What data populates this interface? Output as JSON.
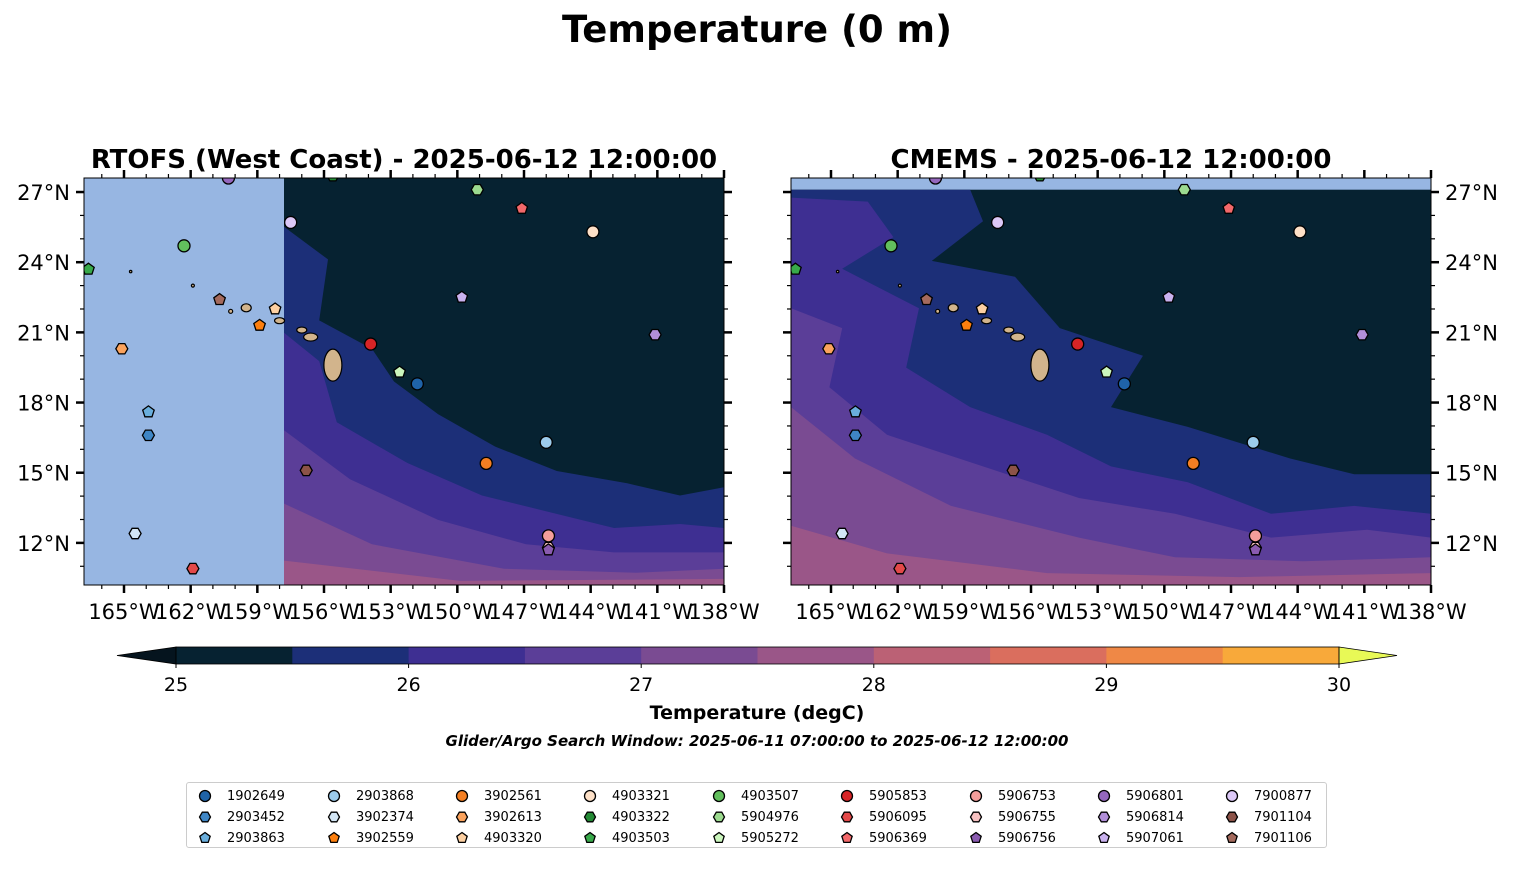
{
  "figure": {
    "suptitle": "Temperature (0 m)",
    "footnote": "Glider/Argo Search Window: 2025-06-11 07:00:00 to 2025-06-12 12:00:00"
  },
  "chart_data": [
    {
      "type": "heatmap",
      "title": "RTOFS (West Coast) - 2025-06-12 12:00:00",
      "x_tick_labels": [
        "165°W",
        "162°W",
        "159°W",
        "156°W",
        "153°W",
        "150°W",
        "147°W",
        "144°W",
        "141°W",
        "138°W"
      ],
      "x_ticks": [
        -165,
        -162,
        -159,
        -156,
        -153,
        -150,
        -147,
        -144,
        -141,
        -138
      ],
      "y_tick_labels": [
        "12°N",
        "15°N",
        "18°N",
        "21°N",
        "24°N",
        "27°N"
      ],
      "y_ticks": [
        12,
        15,
        18,
        21,
        24,
        27
      ],
      "xlim": [
        -166.8,
        -138
      ],
      "ylim": [
        10.2,
        27.6
      ],
      "y_ticks_side": "left",
      "model_coverage_west_lon": -157.8
    },
    {
      "type": "heatmap",
      "title": "CMEMS - 2025-06-12 12:00:00",
      "x_tick_labels": [
        "165°W",
        "162°W",
        "159°W",
        "156°W",
        "153°W",
        "150°W",
        "147°W",
        "144°W",
        "141°W",
        "138°W"
      ],
      "x_ticks": [
        -165,
        -162,
        -159,
        -156,
        -153,
        -150,
        -147,
        -144,
        -141,
        -138
      ],
      "y_tick_labels": [
        "12°N",
        "15°N",
        "18°N",
        "21°N",
        "24°N",
        "27°N"
      ],
      "y_ticks": [
        12,
        15,
        18,
        21,
        24,
        27
      ],
      "xlim": [
        -166.8,
        -138
      ],
      "ylim": [
        10.2,
        27.6
      ],
      "y_ticks_side": "right",
      "model_coverage_north_lat": 27.1
    }
  ],
  "colorbar": {
    "label": "Temperature (degC)",
    "range": [
      25,
      30
    ],
    "tick_values": [
      25,
      26,
      27,
      28,
      29,
      30
    ],
    "tick_labels": [
      "25",
      "26",
      "27",
      "28",
      "29",
      "30"
    ],
    "extend": "both",
    "under_color": "#05141e",
    "over_color": "#e8f956",
    "colors": [
      "#062231",
      "#1c2f78",
      "#3e2f92",
      "#5b3e98",
      "#7a4b92",
      "#9a5688",
      "#bb6175",
      "#da6e5e",
      "#ef8846",
      "#f8a93a",
      "#fdcc3b"
    ]
  },
  "floats": [
    {
      "id": "1902649",
      "marker": "circle",
      "color": "#1f63a8",
      "lon": -151.8,
      "lat": 18.8
    },
    {
      "id": "2903452",
      "marker": "hexagon",
      "color": "#3f86c5",
      "lon": -163.9,
      "lat": 16.6
    },
    {
      "id": "2903863",
      "marker": "pentagon",
      "color": "#6aaedc",
      "lon": -163.9,
      "lat": 17.6
    },
    {
      "id": "2903868",
      "marker": "circle",
      "color": "#9ccbeb",
      "lon": -146.0,
      "lat": 16.3
    },
    {
      "id": "3902374",
      "marker": "hexagon",
      "color": "#d3e6f5",
      "lon": -164.5,
      "lat": 12.4
    },
    {
      "id": "3902559",
      "marker": "pentagon",
      "color": "#fd7f0e",
      "lon": -158.9,
      "lat": 21.3
    },
    {
      "id": "3902561",
      "marker": "circle",
      "color": "#f47f22",
      "lon": -148.7,
      "lat": 15.4
    },
    {
      "id": "3902613",
      "marker": "hexagon",
      "color": "#fba35d",
      "lon": -165.1,
      "lat": 20.3
    },
    {
      "id": "4903320",
      "marker": "pentagon",
      "color": "#fdd0a2",
      "lon": -158.2,
      "lat": 22.0
    },
    {
      "id": "4903321",
      "marker": "circle",
      "color": "#fde0c7",
      "lon": -143.9,
      "lat": 25.3
    },
    {
      "id": "4903322",
      "marker": "hexagon",
      "color": "#248a35",
      "lon": -155.6,
      "lat": 27.7
    },
    {
      "id": "4903503",
      "marker": "pentagon",
      "color": "#38a94a",
      "lon": -166.6,
      "lat": 23.7
    },
    {
      "id": "4903507",
      "marker": "circle",
      "color": "#62bf5d",
      "lon": -162.3,
      "lat": 24.7
    },
    {
      "id": "5904976",
      "marker": "hexagon",
      "color": "#9cda8f",
      "lon": -149.1,
      "lat": 27.1
    },
    {
      "id": "5905272",
      "marker": "pentagon",
      "color": "#cbf6bd",
      "lon": -152.6,
      "lat": 19.3
    },
    {
      "id": "5905853",
      "marker": "circle",
      "color": "#d62426",
      "lon": -153.9,
      "lat": 20.5
    },
    {
      "id": "5906095",
      "marker": "hexagon",
      "color": "#e34949",
      "lon": -161.9,
      "lat": 10.9
    },
    {
      "id": "5906369",
      "marker": "pentagon",
      "color": "#f2686a",
      "lon": -147.1,
      "lat": 26.3
    },
    {
      "id": "5906753",
      "marker": "circle",
      "color": "#f49e9b",
      "lon": -145.9,
      "lat": 12.3
    },
    {
      "id": "5906755",
      "marker": "hexagon",
      "color": "#f7c1c1",
      "lon": -145.9,
      "lat": 11.8
    },
    {
      "id": "5906756",
      "marker": "pentagon",
      "color": "#8a5bb0",
      "lon": -145.9,
      "lat": 11.7
    },
    {
      "id": "5906801",
      "marker": "circle",
      "color": "#9467bd",
      "lon": -160.3,
      "lat": 27.6
    },
    {
      "id": "5906814",
      "marker": "hexagon",
      "color": "#b28fd9",
      "lon": -141.1,
      "lat": 20.9
    },
    {
      "id": "5907061",
      "marker": "pentagon",
      "color": "#c9b1ee",
      "lon": -149.8,
      "lat": 22.5
    },
    {
      "id": "7900877",
      "marker": "circle",
      "color": "#dcc8f7",
      "lon": -157.5,
      "lat": 25.7
    },
    {
      "id": "7901104",
      "marker": "hexagon",
      "color": "#8c5348",
      "lon": -156.8,
      "lat": 15.1
    },
    {
      "id": "7901106",
      "marker": "pentagon",
      "color": "#a46a5d",
      "lon": -160.7,
      "lat": 22.4
    }
  ]
}
